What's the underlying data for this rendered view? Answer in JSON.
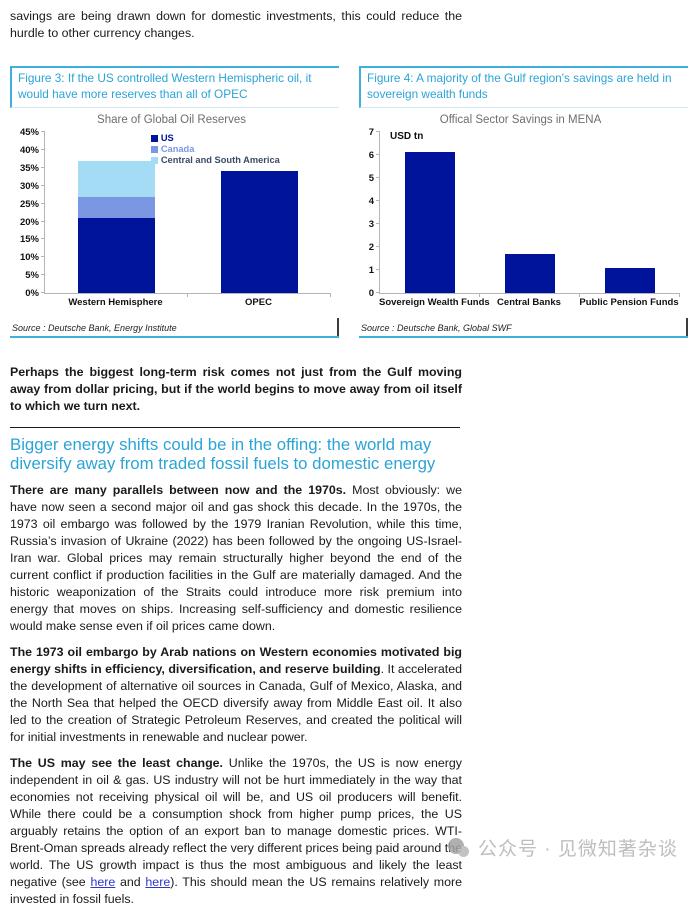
{
  "page": {
    "top_paragraph": "savings are being drawn down for domestic investments, this could reduce the hurdle to other currency changes."
  },
  "figures": [
    {
      "title": "Figure 3: If the US controlled Western Hemispheric oil, it would have more reserves than all of OPEC",
      "source": "Source : Deutsche Bank, Energy Institute"
    },
    {
      "title": "Figure 4: A majority of the Gulf region's savings are held in sovereign wealth funds",
      "source": "Source : Deutsche Bank, Global SWF"
    }
  ],
  "chart_data": [
    {
      "type": "bar",
      "stacked": true,
      "title": "Share of Global Oil Reserves",
      "categories": [
        "Western Hemisphere",
        "OPEC"
      ],
      "series": [
        {
          "name": "US",
          "color": "#00149b",
          "label_color": "#00149b",
          "values": [
            21,
            34
          ]
        },
        {
          "name": "Canada",
          "color": "#7b97e2",
          "label_color": "#7b97e2",
          "values": [
            6,
            0
          ]
        },
        {
          "name": "Central and South America",
          "color": "#a3dcf4",
          "label_color": "#3a4a66",
          "values": [
            10,
            0
          ]
        }
      ],
      "ylim": [
        0,
        45
      ],
      "ytick_step": 5,
      "ytick_suffix": "%",
      "legend_position": "top-right",
      "grid": false,
      "bar_width_ratio": 0.54
    },
    {
      "type": "bar",
      "stacked": false,
      "title": "Offical Sector Savings in MENA",
      "unit_label": "USD tn",
      "categories": [
        "Sovereign Wealth Funds",
        "Central Banks",
        "Public Pension Funds"
      ],
      "values": [
        6.15,
        1.7,
        1.1
      ],
      "bar_color": "#00149b",
      "ylim": [
        0,
        7
      ],
      "ytick_step": 1,
      "ytick_suffix": "",
      "grid": false,
      "bar_width_ratio": 0.5
    }
  ],
  "body": {
    "para_risk": "Perhaps the biggest long-term risk comes not just from the Gulf moving away from dollar pricing, but if the world begins to move away from oil itself to which we turn next.",
    "section_heading": "Bigger energy shifts could be in the offing: the world may diversify away from traded fossil fuels to domestic energy",
    "para1_bold": "There are many parallels between now and the 1970s.",
    "para1_rest": " Most obviously: we have now seen a second major oil and gas shock this decade. In the 1970s, the 1973 oil embargo was followed by the 1979 Iranian Revolution, while this time, Russia’s invasion of Ukraine (2022) has been followed by the ongoing US-Israel-Iran war. Global prices may remain structurally higher beyond the end of the current conflict if production facilities in the Gulf are materially damaged. And the historic weaponization of the Straits could introduce more risk premium into energy that moves on ships. Increasing self-sufficiency and domestic resilience would make sense even if oil prices came down.",
    "para2_bold": "The 1973 oil embargo by Arab nations on Western economies motivated big energy shifts in efficiency, diversification, and reserve building",
    "para2_rest": ". It accelerated the development of alternative oil sources in Canada, Gulf of Mexico, Alaska, and the North Sea that helped the OECD diversify away from Middle East oil. It also led to the creation of Strategic Petroleum Reserves, and created the political will for initial investments in renewable and nuclear power.",
    "para3_bold": "The US may see the least change.",
    "para3_seg1": " Unlike the 1970s, the US is now energy independent in oil & gas. US industry will not be hurt immediately in the way that economies not receiving physical oil will be, and US oil producers will benefit. While there could be a consumption shock from higher pump prices, the US arguably retains the option of an export ban to manage domestic prices. WTI-Brent-Oman spreads already reflect the very different prices being paid around the world. The US growth impact is thus the most ambiguous and likely the least negative (see ",
    "link1": "here",
    "para3_seg2": " and ",
    "link2": "here",
    "para3_seg3": "). This should mean the US remains relatively more invested in fossil fuels."
  },
  "watermark": {
    "text": "公众号 · 见微知著杂谈"
  },
  "colors": {
    "accent_cyan": "#2ba4d6",
    "panel_border_cyan": "#3fafdc",
    "navy_bar": "#00149b",
    "canada_blue": "#7b97e2",
    "latam_blue": "#a3dcf4",
    "link_blue": "#2b36cf"
  }
}
